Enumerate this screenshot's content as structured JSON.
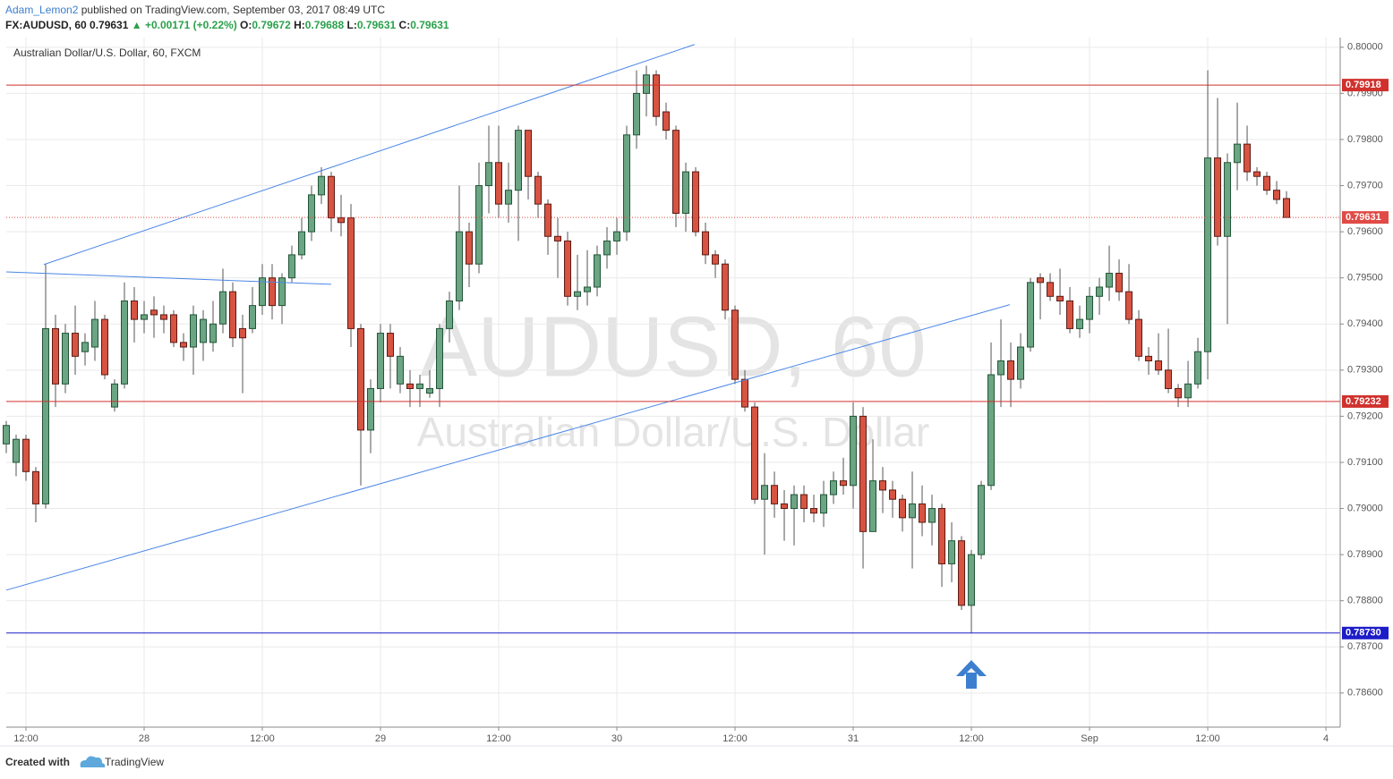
{
  "header": {
    "author": "Adam_Lemon2",
    "published": " published on TradingView.com, September 03, 2017 08:49 UTC",
    "symbol": "FX:AUDUSD, 60  0.79631 ",
    "change": "▲ +0.00171 (+0.22%)",
    "o_key": " O:",
    "o_val": "0.79672",
    "h_key": " H:",
    "h_val": "0.79688",
    "l_key": " L:",
    "l_val": "0.79631",
    "c_key": " C:",
    "c_val": "0.79631"
  },
  "chart_data": {
    "type": "candlestick",
    "legend_text": "Australian Dollar/U.S. Dollar, 60, FXCM",
    "watermark": "AUDUSD, 60",
    "watermark_sub": "Australian Dollar/U.S. Dollar",
    "up_color": "#6ba583",
    "up_edge": "#225437",
    "down_color": "#d75442",
    "down_edge": "#5b1a13",
    "grid": true,
    "xlim": [
      -2,
      133.45
    ],
    "ylim": [
      0.78526,
      0.80021
    ],
    "xticks": [
      {
        "value": 0,
        "label": "12:00"
      },
      {
        "value": 12,
        "label": "28"
      },
      {
        "value": 24,
        "label": "12:00"
      },
      {
        "value": 36,
        "label": "29"
      },
      {
        "value": 48,
        "label": "12:00"
      },
      {
        "value": 60,
        "label": "30"
      },
      {
        "value": 72,
        "label": "12:00"
      },
      {
        "value": 84,
        "label": "31"
      },
      {
        "value": 96,
        "label": "12:00"
      },
      {
        "value": 108,
        "label": "Sep"
      },
      {
        "value": 120,
        "label": "12:00"
      },
      {
        "value": 132,
        "label": "4"
      }
    ],
    "yticks": [
      {
        "value": 0.786,
        "label": "0.78600"
      },
      {
        "value": 0.787,
        "label": "0.78700"
      },
      {
        "value": 0.788,
        "label": "0.78800"
      },
      {
        "value": 0.789,
        "label": "0.78900"
      },
      {
        "value": 0.79,
        "label": "0.79000"
      },
      {
        "value": 0.791,
        "label": "0.79100"
      },
      {
        "value": 0.792,
        "label": "0.79200"
      },
      {
        "value": 0.793,
        "label": "0.79300"
      },
      {
        "value": 0.794,
        "label": "0.79400"
      },
      {
        "value": 0.795,
        "label": "0.79500"
      },
      {
        "value": 0.796,
        "label": "0.79600"
      },
      {
        "value": 0.797,
        "label": "0.79700"
      },
      {
        "value": 0.798,
        "label": "0.79800"
      },
      {
        "value": 0.799,
        "label": "0.79900"
      },
      {
        "value": 0.8,
        "label": "0.80000"
      }
    ],
    "levels": [
      {
        "value": 0.79918,
        "label": "0.79918",
        "color": "#d0312d",
        "dotted": false
      },
      {
        "value": 0.79631,
        "label": "0.79631",
        "color": "#e04b46",
        "dotted": true
      },
      {
        "value": 0.79232,
        "label": "0.79232",
        "color": "#d0312d",
        "dotted": false
      },
      {
        "value": 0.7873,
        "label": "0.78730",
        "color": "#1c1cc8",
        "dotted": false
      }
    ],
    "trendlines": [
      {
        "x": [
          1.82,
          67.9
        ],
        "y": [
          0.79529,
          0.80006
        ],
        "color": "#4a86e8"
      },
      {
        "x": [
          -2,
          31
        ],
        "y": [
          0.79513,
          0.79486
        ],
        "color": "#4a86e8"
      },
      {
        "x": [
          -2,
          99.9
        ],
        "y": [
          0.78823,
          0.79442
        ],
        "color": "#4a86e8"
      }
    ],
    "candles": [
      {
        "x": -2,
        "o": 0.7914,
        "h": 0.7919,
        "l": 0.7912,
        "c": 0.7918
      },
      {
        "x": -1,
        "o": 0.791,
        "h": 0.7916,
        "l": 0.7907,
        "c": 0.7915
      },
      {
        "x": 0,
        "o": 0.7915,
        "h": 0.7916,
        "l": 0.7906,
        "c": 0.7908
      },
      {
        "x": 1,
        "o": 0.7908,
        "h": 0.7909,
        "l": 0.7897,
        "c": 0.7901
      },
      {
        "x": 2,
        "o": 0.7901,
        "h": 0.7953,
        "l": 0.79,
        "c": 0.7939
      },
      {
        "x": 3,
        "o": 0.7939,
        "h": 0.7942,
        "l": 0.7922,
        "c": 0.7927
      },
      {
        "x": 4,
        "o": 0.7927,
        "h": 0.794,
        "l": 0.7925,
        "c": 0.7938
      },
      {
        "x": 5,
        "o": 0.7938,
        "h": 0.7944,
        "l": 0.7929,
        "c": 0.7933
      },
      {
        "x": 6,
        "o": 0.7934,
        "h": 0.7938,
        "l": 0.7931,
        "c": 0.7936
      },
      {
        "x": 7,
        "o": 0.7935,
        "h": 0.7945,
        "l": 0.7932,
        "c": 0.7941
      },
      {
        "x": 8,
        "o": 0.7941,
        "h": 0.7942,
        "l": 0.7928,
        "c": 0.7929
      },
      {
        "x": 9,
        "o": 0.7922,
        "h": 0.7928,
        "l": 0.7921,
        "c": 0.7927
      },
      {
        "x": 10,
        "o": 0.7927,
        "h": 0.7949,
        "l": 0.7926,
        "c": 0.7945
      },
      {
        "x": 11,
        "o": 0.7945,
        "h": 0.7948,
        "l": 0.7936,
        "c": 0.7941
      },
      {
        "x": 12,
        "o": 0.7941,
        "h": 0.7945,
        "l": 0.7938,
        "c": 0.7942
      },
      {
        "x": 13,
        "o": 0.7943,
        "h": 0.7946,
        "l": 0.7937,
        "c": 0.7942
      },
      {
        "x": 14,
        "o": 0.7942,
        "h": 0.7944,
        "l": 0.7938,
        "c": 0.7941
      },
      {
        "x": 15,
        "o": 0.7942,
        "h": 0.7943,
        "l": 0.7935,
        "c": 0.7936
      },
      {
        "x": 16,
        "o": 0.7936,
        "h": 0.7938,
        "l": 0.7932,
        "c": 0.7935
      },
      {
        "x": 17,
        "o": 0.7935,
        "h": 0.7944,
        "l": 0.7929,
        "c": 0.7942
      },
      {
        "x": 18,
        "o": 0.7936,
        "h": 0.7943,
        "l": 0.7932,
        "c": 0.7941
      },
      {
        "x": 19,
        "o": 0.7936,
        "h": 0.7945,
        "l": 0.7934,
        "c": 0.794
      },
      {
        "x": 20,
        "o": 0.794,
        "h": 0.7952,
        "l": 0.7938,
        "c": 0.7947
      },
      {
        "x": 21,
        "o": 0.7947,
        "h": 0.7949,
        "l": 0.7935,
        "c": 0.7937
      },
      {
        "x": 22,
        "o": 0.7939,
        "h": 0.7942,
        "l": 0.7925,
        "c": 0.7937
      },
      {
        "x": 23,
        "o": 0.7939,
        "h": 0.7948,
        "l": 0.7938,
        "c": 0.7944
      },
      {
        "x": 24,
        "o": 0.7944,
        "h": 0.7953,
        "l": 0.7942,
        "c": 0.795
      },
      {
        "x": 25,
        "o": 0.795,
        "h": 0.7953,
        "l": 0.7941,
        "c": 0.7944
      },
      {
        "x": 26,
        "o": 0.7944,
        "h": 0.7951,
        "l": 0.794,
        "c": 0.795
      },
      {
        "x": 27,
        "o": 0.795,
        "h": 0.7957,
        "l": 0.7949,
        "c": 0.7955
      },
      {
        "x": 28,
        "o": 0.7955,
        "h": 0.7963,
        "l": 0.7954,
        "c": 0.796
      },
      {
        "x": 29,
        "o": 0.796,
        "h": 0.797,
        "l": 0.7958,
        "c": 0.7968
      },
      {
        "x": 30,
        "o": 0.7968,
        "h": 0.7974,
        "l": 0.7966,
        "c": 0.7972
      },
      {
        "x": 31,
        "o": 0.7972,
        "h": 0.7973,
        "l": 0.796,
        "c": 0.7963
      },
      {
        "x": 32,
        "o": 0.7963,
        "h": 0.7968,
        "l": 0.7959,
        "c": 0.7962
      },
      {
        "x": 33,
        "o": 0.7963,
        "h": 0.7966,
        "l": 0.7935,
        "c": 0.7939
      },
      {
        "x": 34,
        "o": 0.7939,
        "h": 0.794,
        "l": 0.7905,
        "c": 0.7917
      },
      {
        "x": 35,
        "o": 0.7917,
        "h": 0.7928,
        "l": 0.7912,
        "c": 0.7926
      },
      {
        "x": 36,
        "o": 0.7926,
        "h": 0.794,
        "l": 0.7923,
        "c": 0.7938
      },
      {
        "x": 37,
        "o": 0.7938,
        "h": 0.794,
        "l": 0.7926,
        "c": 0.7933
      },
      {
        "x": 38,
        "o": 0.7927,
        "h": 0.7935,
        "l": 0.7925,
        "c": 0.7933
      },
      {
        "x": 39,
        "o": 0.7927,
        "h": 0.793,
        "l": 0.7922,
        "c": 0.7926
      },
      {
        "x": 40,
        "o": 0.7926,
        "h": 0.7929,
        "l": 0.7922,
        "c": 0.7927
      },
      {
        "x": 41,
        "o": 0.7925,
        "h": 0.793,
        "l": 0.7924,
        "c": 0.7926
      },
      {
        "x": 42,
        "o": 0.7926,
        "h": 0.794,
        "l": 0.7922,
        "c": 0.7939
      },
      {
        "x": 43,
        "o": 0.7939,
        "h": 0.7947,
        "l": 0.7936,
        "c": 0.7945
      },
      {
        "x": 44,
        "o": 0.7945,
        "h": 0.797,
        "l": 0.7943,
        "c": 0.796
      },
      {
        "x": 45,
        "o": 0.796,
        "h": 0.7962,
        "l": 0.7948,
        "c": 0.7953
      },
      {
        "x": 46,
        "o": 0.7953,
        "h": 0.7975,
        "l": 0.7951,
        "c": 0.797
      },
      {
        "x": 47,
        "o": 0.797,
        "h": 0.7983,
        "l": 0.7964,
        "c": 0.7975
      },
      {
        "x": 48,
        "o": 0.7975,
        "h": 0.7983,
        "l": 0.7963,
        "c": 0.7966
      },
      {
        "x": 49,
        "o": 0.7966,
        "h": 0.7975,
        "l": 0.7962,
        "c": 0.7969
      },
      {
        "x": 50,
        "o": 0.7969,
        "h": 0.7983,
        "l": 0.7958,
        "c": 0.7982
      },
      {
        "x": 51,
        "o": 0.7982,
        "h": 0.7982,
        "l": 0.7967,
        "c": 0.7972
      },
      {
        "x": 52,
        "o": 0.7972,
        "h": 0.7973,
        "l": 0.7963,
        "c": 0.7966
      },
      {
        "x": 53,
        "o": 0.7966,
        "h": 0.7967,
        "l": 0.7955,
        "c": 0.7959
      },
      {
        "x": 54,
        "o": 0.7959,
        "h": 0.7963,
        "l": 0.795,
        "c": 0.7958
      },
      {
        "x": 55,
        "o": 0.7958,
        "h": 0.796,
        "l": 0.7944,
        "c": 0.7946
      },
      {
        "x": 56,
        "o": 0.7946,
        "h": 0.7955,
        "l": 0.7943,
        "c": 0.7947
      },
      {
        "x": 57,
        "o": 0.7947,
        "h": 0.7956,
        "l": 0.7944,
        "c": 0.7948
      },
      {
        "x": 58,
        "o": 0.7948,
        "h": 0.7957,
        "l": 0.7946,
        "c": 0.7955
      },
      {
        "x": 59,
        "o": 0.7955,
        "h": 0.7961,
        "l": 0.7952,
        "c": 0.7958
      },
      {
        "x": 60,
        "o": 0.7958,
        "h": 0.7963,
        "l": 0.7955,
        "c": 0.796
      },
      {
        "x": 61,
        "o": 0.796,
        "h": 0.7983,
        "l": 0.7958,
        "c": 0.7981
      },
      {
        "x": 62,
        "o": 0.7981,
        "h": 0.7995,
        "l": 0.7978,
        "c": 0.799
      },
      {
        "x": 63,
        "o": 0.799,
        "h": 0.7996,
        "l": 0.7985,
        "c": 0.7994
      },
      {
        "x": 64,
        "o": 0.7994,
        "h": 0.7995,
        "l": 0.7983,
        "c": 0.7985
      },
      {
        "x": 65,
        "o": 0.7986,
        "h": 0.7988,
        "l": 0.798,
        "c": 0.7982
      },
      {
        "x": 66,
        "o": 0.7982,
        "h": 0.7983,
        "l": 0.7961,
        "c": 0.7964
      },
      {
        "x": 67,
        "o": 0.7964,
        "h": 0.7975,
        "l": 0.796,
        "c": 0.7973
      },
      {
        "x": 68,
        "o": 0.7973,
        "h": 0.7974,
        "l": 0.7959,
        "c": 0.796
      },
      {
        "x": 69,
        "o": 0.796,
        "h": 0.7962,
        "l": 0.7953,
        "c": 0.7955
      },
      {
        "x": 70,
        "o": 0.7955,
        "h": 0.7956,
        "l": 0.795,
        "c": 0.7953
      },
      {
        "x": 71,
        "o": 0.7953,
        "h": 0.7954,
        "l": 0.7941,
        "c": 0.7943
      },
      {
        "x": 72,
        "o": 0.7943,
        "h": 0.7944,
        "l": 0.7927,
        "c": 0.7928
      },
      {
        "x": 73,
        "o": 0.7928,
        "h": 0.793,
        "l": 0.7921,
        "c": 0.7922
      },
      {
        "x": 74,
        "o": 0.7922,
        "h": 0.7923,
        "l": 0.7901,
        "c": 0.7902
      },
      {
        "x": 75,
        "o": 0.7902,
        "h": 0.7912,
        "l": 0.789,
        "c": 0.7905
      },
      {
        "x": 76,
        "o": 0.7905,
        "h": 0.7908,
        "l": 0.7898,
        "c": 0.7901
      },
      {
        "x": 77,
        "o": 0.7901,
        "h": 0.7904,
        "l": 0.7893,
        "c": 0.79
      },
      {
        "x": 78,
        "o": 0.79,
        "h": 0.7905,
        "l": 0.7892,
        "c": 0.7903
      },
      {
        "x": 79,
        "o": 0.7903,
        "h": 0.7905,
        "l": 0.7897,
        "c": 0.79
      },
      {
        "x": 80,
        "o": 0.79,
        "h": 0.7903,
        "l": 0.7897,
        "c": 0.7899
      },
      {
        "x": 81,
        "o": 0.7899,
        "h": 0.7906,
        "l": 0.7896,
        "c": 0.7903
      },
      {
        "x": 82,
        "o": 0.7903,
        "h": 0.7908,
        "l": 0.7901,
        "c": 0.7906
      },
      {
        "x": 83,
        "o": 0.7906,
        "h": 0.7911,
        "l": 0.7903,
        "c": 0.7905
      },
      {
        "x": 84,
        "o": 0.7905,
        "h": 0.7923,
        "l": 0.79,
        "c": 0.792
      },
      {
        "x": 85,
        "o": 0.792,
        "h": 0.7922,
        "l": 0.7887,
        "c": 0.7895
      },
      {
        "x": 86,
        "o": 0.7895,
        "h": 0.7915,
        "l": 0.7895,
        "c": 0.7906
      },
      {
        "x": 87,
        "o": 0.7906,
        "h": 0.7909,
        "l": 0.7899,
        "c": 0.7904
      },
      {
        "x": 88,
        "o": 0.7904,
        "h": 0.7906,
        "l": 0.7898,
        "c": 0.7902
      },
      {
        "x": 89,
        "o": 0.7902,
        "h": 0.7903,
        "l": 0.7895,
        "c": 0.7898
      },
      {
        "x": 90,
        "o": 0.7898,
        "h": 0.7908,
        "l": 0.7887,
        "c": 0.7901
      },
      {
        "x": 91,
        "o": 0.7901,
        "h": 0.7905,
        "l": 0.7894,
        "c": 0.7897
      },
      {
        "x": 92,
        "o": 0.7897,
        "h": 0.7903,
        "l": 0.7892,
        "c": 0.79
      },
      {
        "x": 93,
        "o": 0.79,
        "h": 0.7901,
        "l": 0.7883,
        "c": 0.7888
      },
      {
        "x": 94,
        "o": 0.7888,
        "h": 0.7897,
        "l": 0.7884,
        "c": 0.7893
      },
      {
        "x": 95,
        "o": 0.7893,
        "h": 0.7894,
        "l": 0.7878,
        "c": 0.7879
      },
      {
        "x": 96,
        "o": 0.7879,
        "h": 0.7891,
        "l": 0.7873,
        "c": 0.789
      },
      {
        "x": 97,
        "o": 0.789,
        "h": 0.7906,
        "l": 0.7889,
        "c": 0.7905
      },
      {
        "x": 98,
        "o": 0.7905,
        "h": 0.7936,
        "l": 0.7904,
        "c": 0.7929
      },
      {
        "x": 99,
        "o": 0.7929,
        "h": 0.7941,
        "l": 0.7922,
        "c": 0.7932
      },
      {
        "x": 100,
        "o": 0.7932,
        "h": 0.7936,
        "l": 0.7922,
        "c": 0.7928
      },
      {
        "x": 101,
        "o": 0.7928,
        "h": 0.7938,
        "l": 0.7926,
        "c": 0.7935
      },
      {
        "x": 102,
        "o": 0.7935,
        "h": 0.795,
        "l": 0.7934,
        "c": 0.7949
      },
      {
        "x": 103,
        "o": 0.795,
        "h": 0.7951,
        "l": 0.7941,
        "c": 0.7949
      },
      {
        "x": 104,
        "o": 0.7949,
        "h": 0.7951,
        "l": 0.7945,
        "c": 0.7946
      },
      {
        "x": 105,
        "o": 0.7946,
        "h": 0.7952,
        "l": 0.7942,
        "c": 0.7945
      },
      {
        "x": 106,
        "o": 0.7945,
        "h": 0.7948,
        "l": 0.7938,
        "c": 0.7939
      },
      {
        "x": 107,
        "o": 0.7939,
        "h": 0.7944,
        "l": 0.7937,
        "c": 0.7941
      },
      {
        "x": 108,
        "o": 0.7941,
        "h": 0.7948,
        "l": 0.7938,
        "c": 0.7946
      },
      {
        "x": 109,
        "o": 0.7946,
        "h": 0.795,
        "l": 0.7942,
        "c": 0.7948
      },
      {
        "x": 110,
        "o": 0.7948,
        "h": 0.7957,
        "l": 0.7945,
        "c": 0.7951
      },
      {
        "x": 111,
        "o": 0.7951,
        "h": 0.7954,
        "l": 0.7945,
        "c": 0.7947
      },
      {
        "x": 112,
        "o": 0.7947,
        "h": 0.7953,
        "l": 0.794,
        "c": 0.7941
      },
      {
        "x": 113,
        "o": 0.7941,
        "h": 0.7943,
        "l": 0.7932,
        "c": 0.7933
      },
      {
        "x": 114,
        "o": 0.7933,
        "h": 0.7935,
        "l": 0.7929,
        "c": 0.7932
      },
      {
        "x": 115,
        "o": 0.7932,
        "h": 0.7938,
        "l": 0.7929,
        "c": 0.793
      },
      {
        "x": 116,
        "o": 0.793,
        "h": 0.7939,
        "l": 0.7925,
        "c": 0.7926
      },
      {
        "x": 117,
        "o": 0.7926,
        "h": 0.7927,
        "l": 0.7922,
        "c": 0.7924
      },
      {
        "x": 118,
        "o": 0.7924,
        "h": 0.7932,
        "l": 0.7922,
        "c": 0.7927
      },
      {
        "x": 119,
        "o": 0.7927,
        "h": 0.7937,
        "l": 0.7926,
        "c": 0.7934
      },
      {
        "x": 120,
        "o": 0.7934,
        "h": 0.7995,
        "l": 0.7928,
        "c": 0.7976
      },
      {
        "x": 121,
        "o": 0.7976,
        "h": 0.7989,
        "l": 0.7957,
        "c": 0.7959
      },
      {
        "x": 122,
        "o": 0.7959,
        "h": 0.7977,
        "l": 0.794,
        "c": 0.7975
      },
      {
        "x": 123,
        "o": 0.7975,
        "h": 0.7988,
        "l": 0.7969,
        "c": 0.7979
      },
      {
        "x": 124,
        "o": 0.7979,
        "h": 0.7983,
        "l": 0.7971,
        "c": 0.7973
      },
      {
        "x": 125,
        "o": 0.7973,
        "h": 0.7974,
        "l": 0.797,
        "c": 0.7972
      },
      {
        "x": 126,
        "o": 0.7972,
        "h": 0.7973,
        "l": 0.7968,
        "c": 0.7969
      },
      {
        "x": 127,
        "o": 0.7969,
        "h": 0.7971,
        "l": 0.7966,
        "c": 0.7967
      },
      {
        "x": 128,
        "o": 0.79672,
        "h": 0.79688,
        "l": 0.79631,
        "c": 0.79631
      }
    ]
  },
  "footer": {
    "created": "Created with",
    "brand": "TradingView"
  }
}
